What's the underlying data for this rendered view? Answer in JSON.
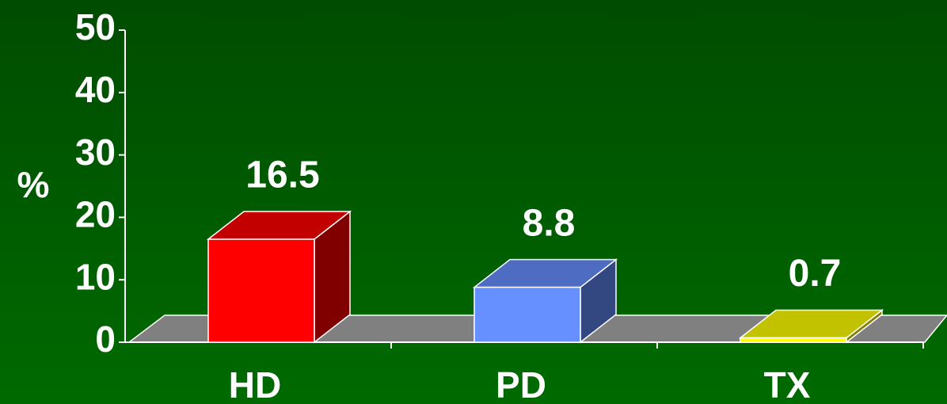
{
  "chart_data": {
    "type": "bar3d",
    "y_label": "%",
    "categories": [
      "HD",
      "PD",
      "TX"
    ],
    "values": [
      16.5,
      8.8,
      0.7
    ],
    "colors": [
      "#ff0000",
      "#6690ff",
      "#ffff00"
    ],
    "ylim": [
      0,
      50
    ],
    "yticks": [
      0,
      10,
      20,
      30,
      40,
      50
    ],
    "grid": false
  }
}
